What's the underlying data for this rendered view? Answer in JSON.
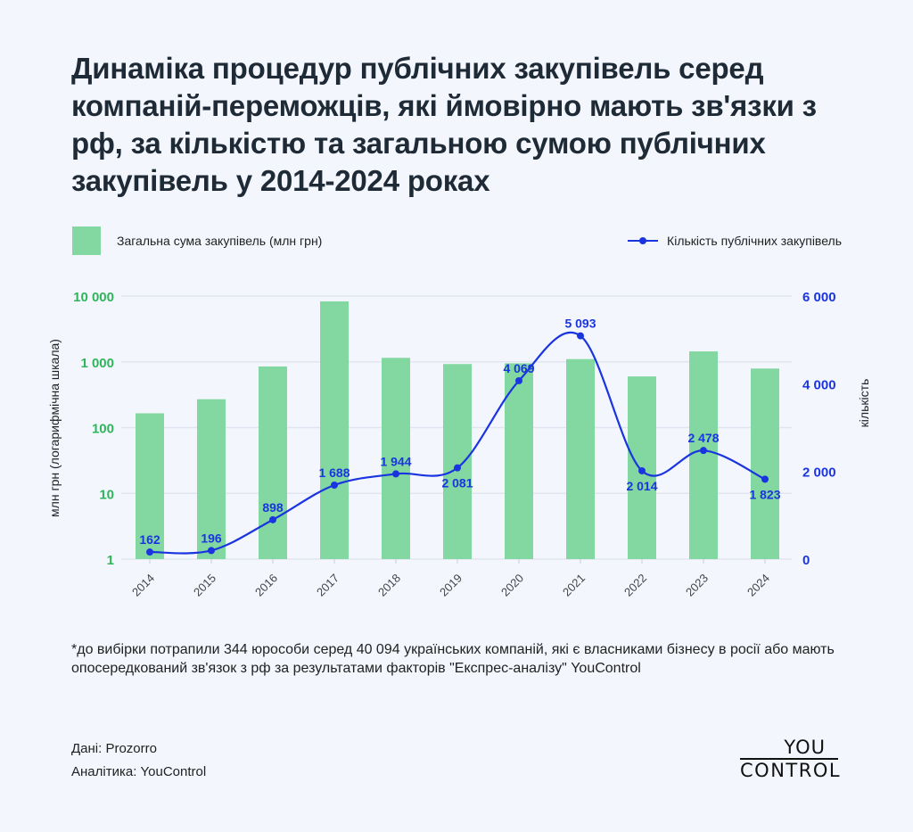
{
  "title": "Динаміка процедур публічних закупівель серед компаній-переможців, які ймовірно мають зв'язки з рф, за кількістю та загальною сумою публічних закупівель у 2014-2024 роках",
  "colors": {
    "bar": "#82d8a0",
    "line": "#1a35e0",
    "left_axis": "#2fb55a",
    "right_axis": "#1a35e0",
    "background": "#f3f6fd"
  },
  "chart_data": {
    "type": "bar+line",
    "categories": [
      "2014",
      "2015",
      "2016",
      "2017",
      "2018",
      "2019",
      "2020",
      "2021",
      "2022",
      "2023",
      "2024"
    ],
    "series": [
      {
        "name": "Загальна сума закупівель (млн грн)",
        "type": "bar",
        "axis": "left",
        "values": [
          165,
          270,
          850,
          8300,
          1150,
          925,
          950,
          1100,
          600,
          1440,
          790
        ]
      },
      {
        "name": "Кількість публічних закупівель",
        "type": "line",
        "axis": "right",
        "values": [
          162,
          196,
          898,
          1688,
          1944,
          2081,
          4069,
          5093,
          2014,
          2478,
          1823
        ],
        "labels": [
          "162",
          "196",
          "898",
          "1 688",
          "1 944",
          "2 081",
          "4 069",
          "5 093",
          "2 014",
          "2 478",
          "1 823"
        ]
      }
    ],
    "left_axis": {
      "label": "млн грн (логарифмічна шкала)",
      "scale": "log",
      "range": [
        1,
        10000
      ],
      "ticks": [
        1,
        10,
        100,
        1000,
        10000
      ],
      "tick_labels": [
        "1",
        "10",
        "100",
        "1 000",
        "10 000"
      ]
    },
    "right_axis": {
      "label": "кількість",
      "scale": "linear",
      "range": [
        0,
        6000
      ],
      "ticks": [
        0,
        2000,
        4000,
        6000
      ],
      "tick_labels": [
        "0",
        "2 000",
        "4 000",
        "6 000"
      ]
    },
    "grid": true,
    "legend": "top"
  },
  "footnote": "*до вибірки потрапили 344 юрособи серед 40 094 українських компаній, які є власниками бізнесу в росії або мають опосередкований зв'язок з рф за результатами факторів \"Експрес-аналізу\" YouControl",
  "source": "Дані: Prozorro",
  "analytics": "Аналітика: YouControl",
  "logo": {
    "top": "YOU",
    "bottom": "CONTROL"
  }
}
